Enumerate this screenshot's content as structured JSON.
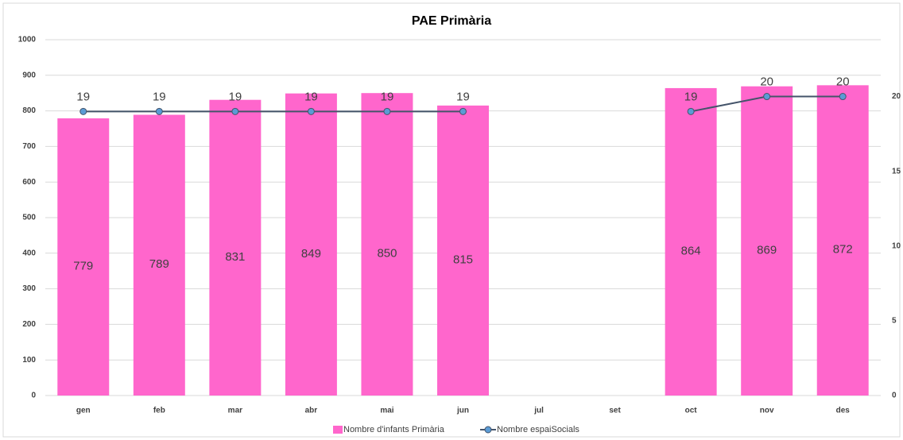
{
  "chart_data": {
    "type": "bar_line",
    "title": "PAE Primària",
    "categories": [
      "gen",
      "feb",
      "mar",
      "abr",
      "mai",
      "jun",
      "jul",
      "set",
      "oct",
      "nov",
      "des"
    ],
    "series": [
      {
        "name": "Nombre d'infants Primària",
        "type": "bar",
        "color": "#ff66cc",
        "values": [
          779,
          789,
          831,
          849,
          850,
          815,
          null,
          null,
          864,
          869,
          872
        ]
      },
      {
        "name": "Nombre espaiSocials",
        "type": "line",
        "axis": "y2",
        "color": "#44546a",
        "marker_color": "#5b9bd5",
        "values": [
          19,
          19,
          19,
          19,
          19,
          19,
          null,
          null,
          19,
          20,
          20
        ]
      }
    ],
    "ylim": [
      0,
      1000
    ],
    "yticks": [
      0,
      100,
      200,
      300,
      400,
      500,
      600,
      700,
      800,
      900,
      1000
    ],
    "y2lim": [
      0,
      23.8
    ],
    "y2ticks": [
      0,
      5,
      10,
      15,
      20
    ],
    "grid": true,
    "legend": "bottom"
  }
}
